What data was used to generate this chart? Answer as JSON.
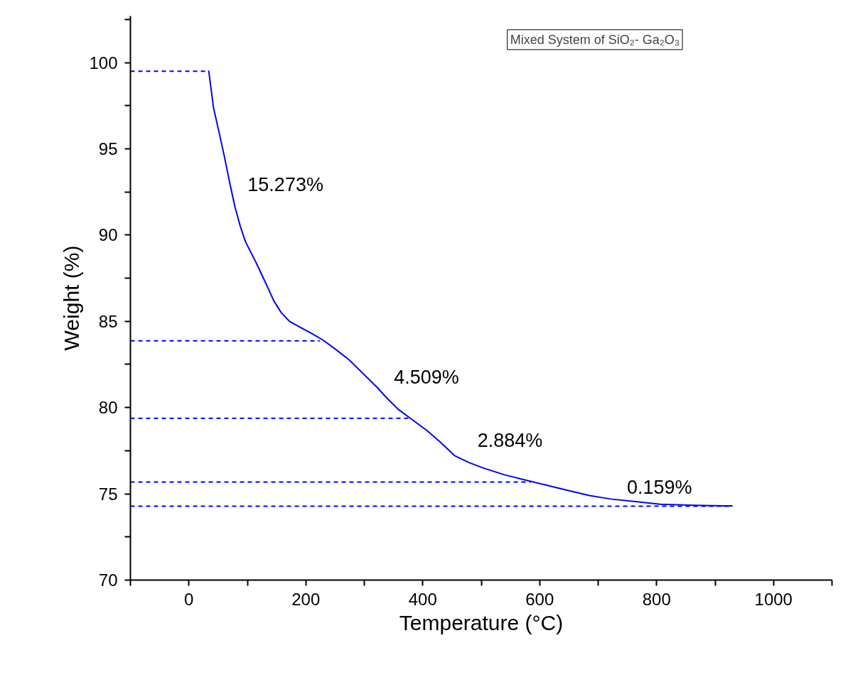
{
  "chart_data": {
    "type": "line",
    "title": "Mixed System of SiO₂- Ga₂O₃",
    "xlabel": "Temperature (°C)",
    "ylabel": "Weight (%)",
    "xlim": [
      -100,
      1100
    ],
    "ylim": [
      70,
      102.7
    ],
    "xticks": [
      {
        "value": -100,
        "label": null
      },
      0,
      {
        "value": 100,
        "label": null
      },
      200,
      {
        "value": 300,
        "label": null
      },
      400,
      {
        "value": 500,
        "label": null
      },
      600,
      {
        "value": 700,
        "label": null
      },
      800,
      {
        "value": 900,
        "label": null
      },
      1000,
      {
        "value": 1100,
        "label": null
      }
    ],
    "yticks": [
      70,
      {
        "value": 72.5,
        "label": null
      },
      75,
      {
        "value": 77.5,
        "label": null
      },
      80,
      {
        "value": 82.5,
        "label": null
      },
      85,
      {
        "value": 87.5,
        "label": null
      },
      90,
      {
        "value": 92.5,
        "label": null
      },
      95,
      {
        "value": 97.5,
        "label": null
      },
      100,
      {
        "value": 102.5,
        "label": null
      }
    ],
    "grid": false,
    "marker": "none",
    "series": [
      {
        "color": "#0000ff",
        "line_style": "solid",
        "x": [
          33,
          34,
          42,
          52,
          61,
          70,
          79,
          88,
          97,
          115,
          133,
          145,
          158,
          172,
          188,
          210,
          230,
          250,
          273,
          297,
          321,
          340,
          358,
          382,
          406,
          430,
          455,
          480,
          503,
          540,
          576,
          612,
          648,
          685,
          721,
          764,
          806,
          865,
          925,
          930
        ],
        "values": [
          99.5,
          99.5,
          97.4,
          95.9,
          94.5,
          93.0,
          91.6,
          90.5,
          89.6,
          88.4,
          87.1,
          86.2,
          85.5,
          85.0,
          84.7,
          84.3,
          83.9,
          83.4,
          82.8,
          82.0,
          81.2,
          80.5,
          79.9,
          79.3,
          78.7,
          78.0,
          77.2,
          76.8,
          76.5,
          76.1,
          75.8,
          75.5,
          75.2,
          74.9,
          74.7,
          74.55,
          74.4,
          74.33,
          74.3,
          74.3
        ]
      },
      {
        "color": "#0000ff",
        "line_style": "dashed",
        "x": [
          -100,
          33
        ],
        "values": [
          99.5,
          99.5
        ]
      },
      {
        "color": "#0000ff",
        "line_style": "dashed",
        "x": [
          -100,
          224
        ],
        "values": [
          83.87,
          83.87
        ]
      },
      {
        "color": "#0000ff",
        "line_style": "dashed",
        "x": [
          -100,
          375
        ],
        "values": [
          79.38,
          79.38
        ]
      },
      {
        "color": "#0000ff",
        "line_style": "dashed",
        "x": [
          -100,
          585
        ],
        "values": [
          75.68,
          75.68
        ]
      },
      {
        "color": "#0000ff",
        "line_style": "dashed",
        "x": [
          -100,
          927
        ],
        "values": [
          74.28,
          74.28
        ]
      }
    ],
    "annotations": [
      "15.273%",
      "4.509%",
      "2.884%",
      "0.159%"
    ]
  }
}
